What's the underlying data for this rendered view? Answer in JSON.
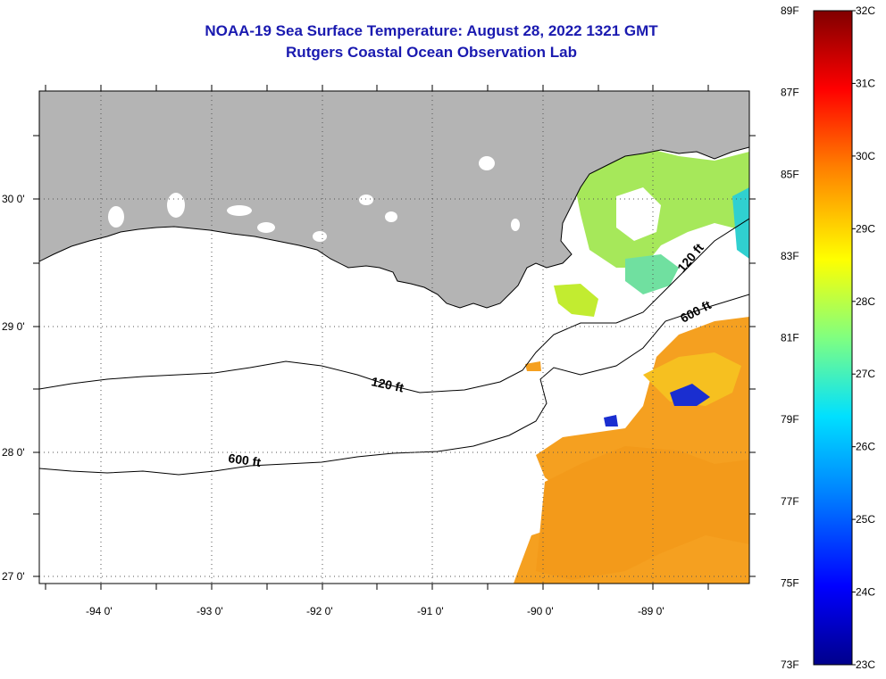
{
  "title": {
    "line1": "NOAA-19 Sea Surface Temperature:  August 28, 2022 1321 GMT",
    "line2": "Rutgers Coastal Ocean Observation Lab"
  },
  "axes": {
    "lat_labels": [
      "30 0'",
      "29 0'",
      "28 0'",
      "27 0'"
    ],
    "lon_labels": [
      "-94 0'",
      "-93 0'",
      "-92 0'",
      "-91 0'",
      "-90 0'",
      "-89 0'"
    ],
    "lat_values": [
      30,
      29,
      28,
      27
    ],
    "lon_values": [
      -94,
      -93,
      -92,
      -91,
      -90,
      -89
    ]
  },
  "contours": {
    "shelf_label": "120 ft",
    "slope_label": "600 ft"
  },
  "colorbar": {
    "f_labels": [
      "89F",
      "87F",
      "85F",
      "83F",
      "81F",
      "79F",
      "77F",
      "75F",
      "73F"
    ],
    "c_labels": [
      "32C",
      "31C",
      "30C",
      "29C",
      "28C",
      "27C",
      "26C",
      "25C",
      "24C",
      "23C"
    ],
    "range_c": [
      23,
      32
    ],
    "range_f": [
      73,
      89
    ],
    "colors": [
      "#00008b",
      "#0000ff",
      "#0080ff",
      "#00ffff",
      "#80ff80",
      "#ffff00",
      "#ff8000",
      "#ff0000",
      "#800000"
    ]
  },
  "colors": {
    "land": "#b4b4b4",
    "no_data": "#ffffff",
    "title": "#1a1ab0"
  }
}
